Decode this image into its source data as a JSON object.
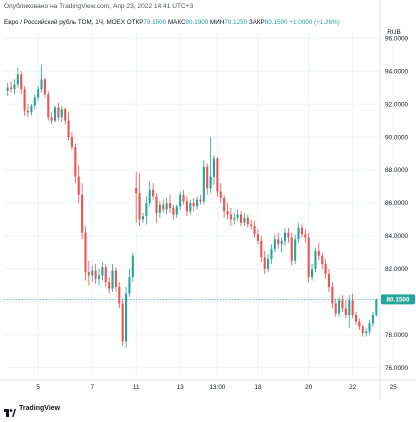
{
  "header": {
    "published": "Опубликовано на TradingView.com, Апр 23, 2022 14:41 UTC+3",
    "symbol": "Евро / Российский рубль TOM, 1Ч, MOEX",
    "open_label": "ОТКР",
    "open_value": "79.1500",
    "high_label": "МАКС",
    "high_value": "80.1900",
    "low_label": "МИН",
    "low_value": "79.1250",
    "close_label": "ЗАКР",
    "close_value": "80.1500",
    "change": "+1.0000 (+1.26%)"
  },
  "colors": {
    "up": "#26a69a",
    "down": "#ef5350",
    "price_label": "#26a69a",
    "grid": "#f0f3fa"
  },
  "logo": {
    "text": "TradingView",
    "icon": "tradingview-logo-icon"
  },
  "chart_data": {
    "type": "candlestick",
    "currency": "RUB",
    "ylim": [
      75.5,
      96.5
    ],
    "y_ticks": [
      76,
      78,
      80,
      82,
      84,
      86,
      88,
      90,
      92,
      94,
      96
    ],
    "y_tick_labels": [
      "76.0000",
      "78.0000",
      "80.0000",
      "82.0000",
      "84.0000",
      "86.0000",
      "88.0000",
      "90.0000",
      "92.0000",
      "94.0000",
      "96.0000"
    ],
    "x_tick_labels": [
      "5",
      "7",
      "11",
      "13",
      "13:00",
      "18",
      "20",
      "22",
      "25"
    ],
    "x_tick_index": [
      9,
      25,
      38,
      51,
      62,
      74,
      89,
      102,
      114
    ],
    "last_price": 80.15,
    "last_price_label": "80.1500",
    "candles": [
      [
        92.8,
        93.3,
        92.5,
        93.0
      ],
      [
        93.0,
        93.4,
        92.7,
        92.9
      ],
      [
        92.9,
        93.5,
        92.6,
        93.2
      ],
      [
        93.2,
        94.2,
        93.0,
        93.8
      ],
      [
        93.8,
        94.0,
        92.6,
        92.9
      ],
      [
        92.9,
        93.1,
        91.3,
        91.6
      ],
      [
        91.6,
        92.0,
        91.2,
        91.5
      ],
      [
        91.5,
        92.0,
        91.3,
        91.9
      ],
      [
        91.9,
        92.6,
        91.7,
        92.4
      ],
      [
        92.4,
        93.1,
        92.2,
        92.9
      ],
      [
        92.9,
        94.4,
        92.7,
        93.5
      ],
      [
        93.5,
        93.6,
        92.4,
        92.6
      ],
      [
        92.6,
        92.8,
        91.0,
        91.2
      ],
      [
        91.2,
        91.5,
        90.8,
        91.0
      ],
      [
        91.0,
        91.9,
        90.9,
        91.8
      ],
      [
        91.8,
        92.1,
        91.0,
        91.2
      ],
      [
        91.2,
        91.9,
        90.9,
        91.7
      ],
      [
        91.7,
        91.8,
        90.8,
        91.0
      ],
      [
        91.0,
        91.5,
        89.8,
        90.0
      ],
      [
        90.0,
        90.3,
        89.2,
        89.4
      ],
      [
        89.4,
        89.6,
        87.2,
        87.6
      ],
      [
        87.6,
        88.3,
        86.0,
        86.5
      ],
      [
        86.5,
        87.2,
        83.8,
        84.2
      ],
      [
        84.2,
        84.6,
        81.3,
        81.8
      ],
      [
        81.8,
        82.5,
        81.0,
        81.6
      ],
      [
        81.6,
        82.2,
        81.2,
        81.9
      ],
      [
        81.9,
        82.3,
        81.1,
        81.4
      ],
      [
        81.4,
        82.0,
        81.0,
        81.6
      ],
      [
        81.6,
        82.4,
        81.3,
        82.1
      ],
      [
        82.1,
        82.3,
        80.9,
        81.2
      ],
      [
        81.2,
        81.5,
        80.5,
        80.8
      ],
      [
        80.8,
        82.3,
        80.6,
        81.9
      ],
      [
        81.9,
        82.1,
        80.6,
        80.9
      ],
      [
        80.9,
        81.2,
        79.6,
        79.9
      ],
      [
        79.9,
        80.2,
        77.3,
        77.6
      ],
      [
        77.6,
        80.9,
        77.2,
        80.5
      ],
      [
        80.5,
        82.0,
        80.3,
        81.5
      ],
      [
        81.5,
        83.0,
        81.2,
        82.8
      ],
      [
        86.9,
        87.9,
        84.8,
        86.6
      ],
      [
        86.6,
        87.8,
        84.6,
        85.0
      ],
      [
        85.0,
        85.4,
        84.8,
        85.2
      ],
      [
        85.2,
        86.4,
        84.7,
        86.0
      ],
      [
        86.0,
        87.3,
        85.8,
        86.8
      ],
      [
        86.8,
        87.2,
        86.2,
        86.4
      ],
      [
        86.4,
        86.6,
        84.8,
        85.4
      ],
      [
        85.4,
        86.1,
        85.1,
        85.9
      ],
      [
        85.9,
        86.2,
        85.4,
        85.6
      ],
      [
        85.6,
        86.3,
        85.3,
        86.0
      ],
      [
        86.0,
        86.5,
        85.4,
        85.7
      ],
      [
        85.7,
        85.9,
        85.0,
        85.3
      ],
      [
        85.3,
        85.9,
        85.1,
        85.8
      ],
      [
        85.8,
        86.7,
        85.6,
        86.5
      ],
      [
        86.5,
        86.8,
        85.9,
        86.1
      ],
      [
        86.1,
        86.4,
        85.2,
        85.5
      ],
      [
        85.5,
        86.2,
        85.3,
        86.0
      ],
      [
        86.0,
        86.3,
        85.5,
        85.8
      ],
      [
        85.8,
        86.4,
        85.6,
        86.2
      ],
      [
        86.2,
        86.5,
        85.9,
        86.1
      ],
      [
        86.1,
        88.6,
        85.9,
        88.2
      ],
      [
        88.2,
        88.4,
        86.5,
        86.9
      ],
      [
        86.9,
        90.0,
        86.6,
        87.6
      ],
      [
        87.6,
        88.9,
        87.1,
        88.7
      ],
      [
        88.7,
        88.8,
        86.4,
        86.7
      ],
      [
        86.7,
        87.2,
        86.0,
        86.3
      ],
      [
        86.3,
        86.5,
        85.1,
        85.5
      ],
      [
        85.5,
        86.0,
        85.0,
        85.3
      ],
      [
        85.3,
        85.7,
        84.6,
        85.0
      ],
      [
        85.0,
        85.4,
        84.7,
        85.1
      ],
      [
        85.1,
        85.6,
        84.9,
        85.3
      ],
      [
        85.3,
        85.5,
        84.6,
        84.8
      ],
      [
        84.8,
        85.4,
        84.6,
        85.1
      ],
      [
        85.1,
        85.3,
        84.5,
        84.7
      ],
      [
        84.7,
        85.0,
        84.4,
        84.6
      ],
      [
        84.6,
        84.9,
        83.9,
        84.1
      ],
      [
        84.1,
        84.4,
        83.5,
        83.7
      ],
      [
        83.7,
        84.0,
        82.4,
        82.7
      ],
      [
        82.7,
        83.1,
        81.7,
        82.0
      ],
      [
        82.0,
        82.9,
        81.8,
        82.6
      ],
      [
        82.6,
        83.5,
        82.3,
        83.2
      ],
      [
        83.2,
        84.1,
        83.0,
        83.8
      ],
      [
        83.8,
        84.2,
        83.2,
        83.5
      ],
      [
        83.5,
        83.9,
        83.0,
        83.7
      ],
      [
        83.7,
        84.5,
        83.4,
        84.2
      ],
      [
        84.2,
        84.5,
        83.6,
        83.9
      ],
      [
        83.9,
        84.2,
        82.2,
        82.5
      ],
      [
        82.5,
        84.1,
        82.3,
        83.8
      ],
      [
        83.8,
        84.8,
        83.6,
        84.5
      ],
      [
        84.5,
        84.7,
        83.9,
        84.1
      ],
      [
        84.1,
        84.4,
        83.6,
        83.9
      ],
      [
        83.9,
        84.2,
        81.2,
        81.5
      ],
      [
        81.5,
        82.3,
        81.3,
        82.0
      ],
      [
        82.0,
        83.3,
        81.8,
        83.1
      ],
      [
        83.1,
        83.6,
        82.5,
        82.8
      ],
      [
        82.8,
        83.0,
        82.0,
        82.3
      ],
      [
        82.3,
        82.6,
        81.4,
        81.7
      ],
      [
        81.7,
        82.0,
        80.6,
        80.9
      ],
      [
        80.9,
        81.2,
        79.6,
        79.9
      ],
      [
        79.9,
        80.2,
        79.1,
        79.3
      ],
      [
        79.3,
        80.3,
        79.1,
        80.1
      ],
      [
        80.1,
        80.4,
        79.4,
        79.6
      ],
      [
        79.6,
        80.1,
        79.0,
        79.2
      ],
      [
        79.2,
        80.4,
        78.4,
        80.1
      ],
      [
        80.1,
        80.5,
        79.0,
        79.2
      ],
      [
        79.2,
        79.4,
        78.6,
        78.8
      ],
      [
        78.8,
        79.0,
        78.3,
        78.5
      ],
      [
        78.5,
        78.6,
        77.9,
        78.1
      ],
      [
        78.1,
        78.4,
        77.9,
        78.2
      ],
      [
        78.2,
        78.9,
        78.0,
        78.7
      ],
      [
        78.7,
        79.4,
        78.5,
        79.2
      ],
      [
        79.2,
        80.2,
        79.1,
        80.15
      ]
    ]
  }
}
